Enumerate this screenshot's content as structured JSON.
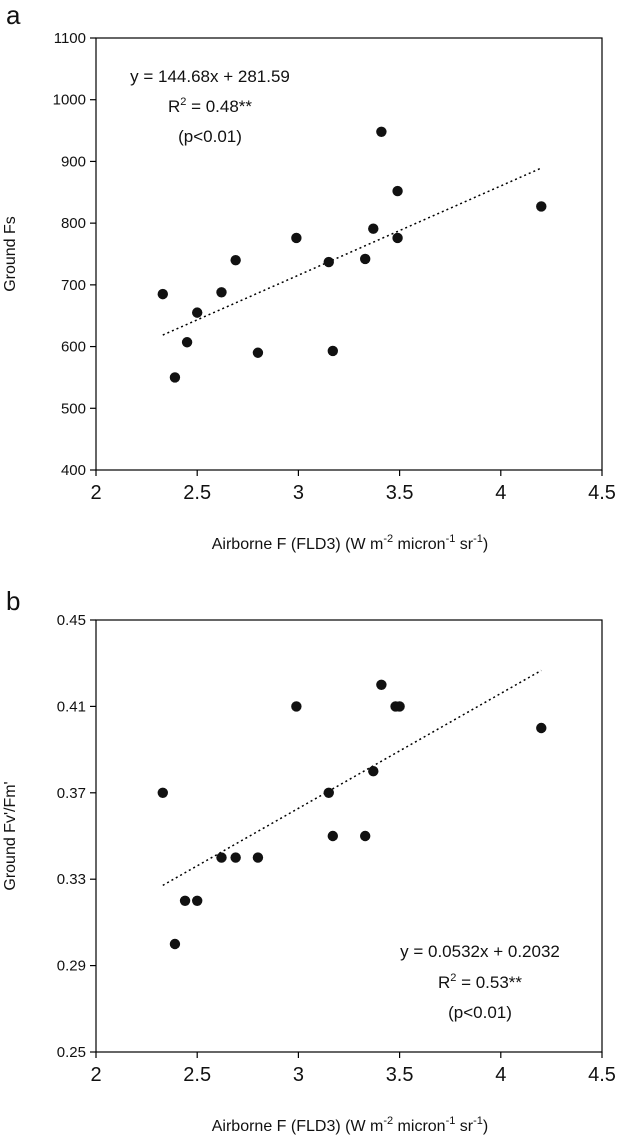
{
  "chart_data": [
    {
      "type": "scatter",
      "panel_label": "a",
      "xlabel": {
        "main": "Airborne F (FLD3) (W m",
        "sup1": "-2",
        "mid1": " micron",
        "sup2": "-1",
        "mid2": " sr",
        "sup3": "-1",
        "end": ")"
      },
      "ylabel": "Ground Fs",
      "xlim": [
        2,
        4.5
      ],
      "ylim": [
        400,
        1100
      ],
      "xticks": [
        "2",
        "2.5",
        "3",
        "3.5",
        "4",
        "4.5"
      ],
      "yticks": [
        "400",
        "500",
        "600",
        "700",
        "800",
        "900",
        "1000",
        "1100"
      ],
      "xtick_values": [
        2,
        2.5,
        3,
        3.5,
        4,
        4.5
      ],
      "ytick_values": [
        400,
        500,
        600,
        700,
        800,
        900,
        1000,
        1100
      ],
      "points": [
        [
          2.33,
          685
        ],
        [
          2.39,
          550
        ],
        [
          2.45,
          607
        ],
        [
          2.5,
          655
        ],
        [
          2.62,
          688
        ],
        [
          2.69,
          740
        ],
        [
          2.8,
          590
        ],
        [
          2.99,
          776
        ],
        [
          3.15,
          737
        ],
        [
          3.17,
          593
        ],
        [
          3.33,
          742
        ],
        [
          3.37,
          791
        ],
        [
          3.41,
          948
        ],
        [
          3.49,
          852
        ],
        [
          3.49,
          776
        ],
        [
          4.2,
          827
        ]
      ],
      "trendline": {
        "slope": 144.68,
        "intercept": 281.59,
        "x_range": [
          2.33,
          4.2
        ]
      },
      "annotation": {
        "line1": "y = 144.68x + 281.59",
        "r2_prefix": "R",
        "r2_sup": "2",
        "r2_suffix": " = 0.48**",
        "line3": "(p<0.01)"
      },
      "grid": false
    },
    {
      "type": "scatter",
      "panel_label": "b",
      "xlabel": {
        "main": "Airborne F (FLD3) (W m",
        "sup1": "-2",
        "mid1": " micron",
        "sup2": "-1",
        "mid2": " sr",
        "sup3": "-1",
        "end": ")"
      },
      "ylabel": "Ground Fv'/Fm'",
      "xlim": [
        2,
        4.5
      ],
      "ylim": [
        0.25,
        0.45
      ],
      "xticks": [
        "2",
        "2.5",
        "3",
        "3.5",
        "4",
        "4.5"
      ],
      "yticks": [
        "0.25",
        "0.29",
        "0.33",
        "0.37",
        "0.41",
        "0.45"
      ],
      "xtick_values": [
        2,
        2.5,
        3,
        3.5,
        4,
        4.5
      ],
      "ytick_values": [
        0.25,
        0.29,
        0.33,
        0.37,
        0.41,
        0.45
      ],
      "points": [
        [
          2.33,
          0.37
        ],
        [
          2.39,
          0.3
        ],
        [
          2.44,
          0.32
        ],
        [
          2.5,
          0.32
        ],
        [
          2.62,
          0.34
        ],
        [
          2.69,
          0.34
        ],
        [
          2.8,
          0.34
        ],
        [
          2.99,
          0.41
        ],
        [
          3.15,
          0.37
        ],
        [
          3.17,
          0.35
        ],
        [
          3.33,
          0.35
        ],
        [
          3.37,
          0.38
        ],
        [
          3.41,
          0.42
        ],
        [
          3.48,
          0.41
        ],
        [
          3.5,
          0.41
        ],
        [
          4.2,
          0.4
        ]
      ],
      "trendline": {
        "slope": 0.0532,
        "intercept": 0.2032,
        "x_range": [
          2.33,
          4.2
        ]
      },
      "annotation": {
        "line1": "y = 0.0532x + 0.2032",
        "r2_prefix": "R",
        "r2_sup": "2",
        "r2_suffix": " = 0.53**",
        "line3": "(p<0.01)"
      },
      "grid": false
    }
  ]
}
